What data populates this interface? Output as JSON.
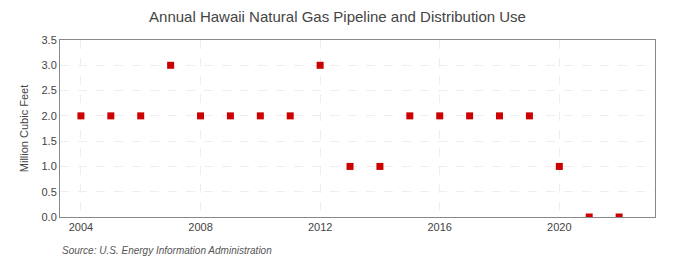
{
  "chart_data": {
    "type": "scatter",
    "title": "Annual Hawaii Natural Gas Pipeline and Distribution Use",
    "ylabel": "Million Cubic Feet",
    "source": "Source: U.S. Energy Information Administration",
    "x": [
      2004,
      2005,
      2006,
      2007,
      2008,
      2009,
      2010,
      2011,
      2012,
      2013,
      2014,
      2015,
      2016,
      2017,
      2018,
      2019,
      2020,
      2021,
      2022
    ],
    "values": [
      2.0,
      2.0,
      2.0,
      3.0,
      2.0,
      2.0,
      2.0,
      2.0,
      3.0,
      1.0,
      1.0,
      2.0,
      2.0,
      2.0,
      2.0,
      2.0,
      1.0,
      0.0,
      0.0
    ],
    "color": "#cc0000",
    "marker": "square",
    "xlim": [
      2003.3,
      2023.2
    ],
    "xticks": [
      2004,
      2008,
      2012,
      2016,
      2020
    ],
    "ylim": [
      0.0,
      3.5
    ],
    "yticks": [
      {
        "value": 0.0,
        "label": "0.0"
      },
      0.5,
      {
        "value": 1.0,
        "label": "1.0"
      },
      1.5,
      {
        "value": 2.0,
        "label": "2.0"
      },
      2.5,
      {
        "value": 3.0,
        "label": "3.0"
      },
      3.5
    ],
    "grid": true
  }
}
